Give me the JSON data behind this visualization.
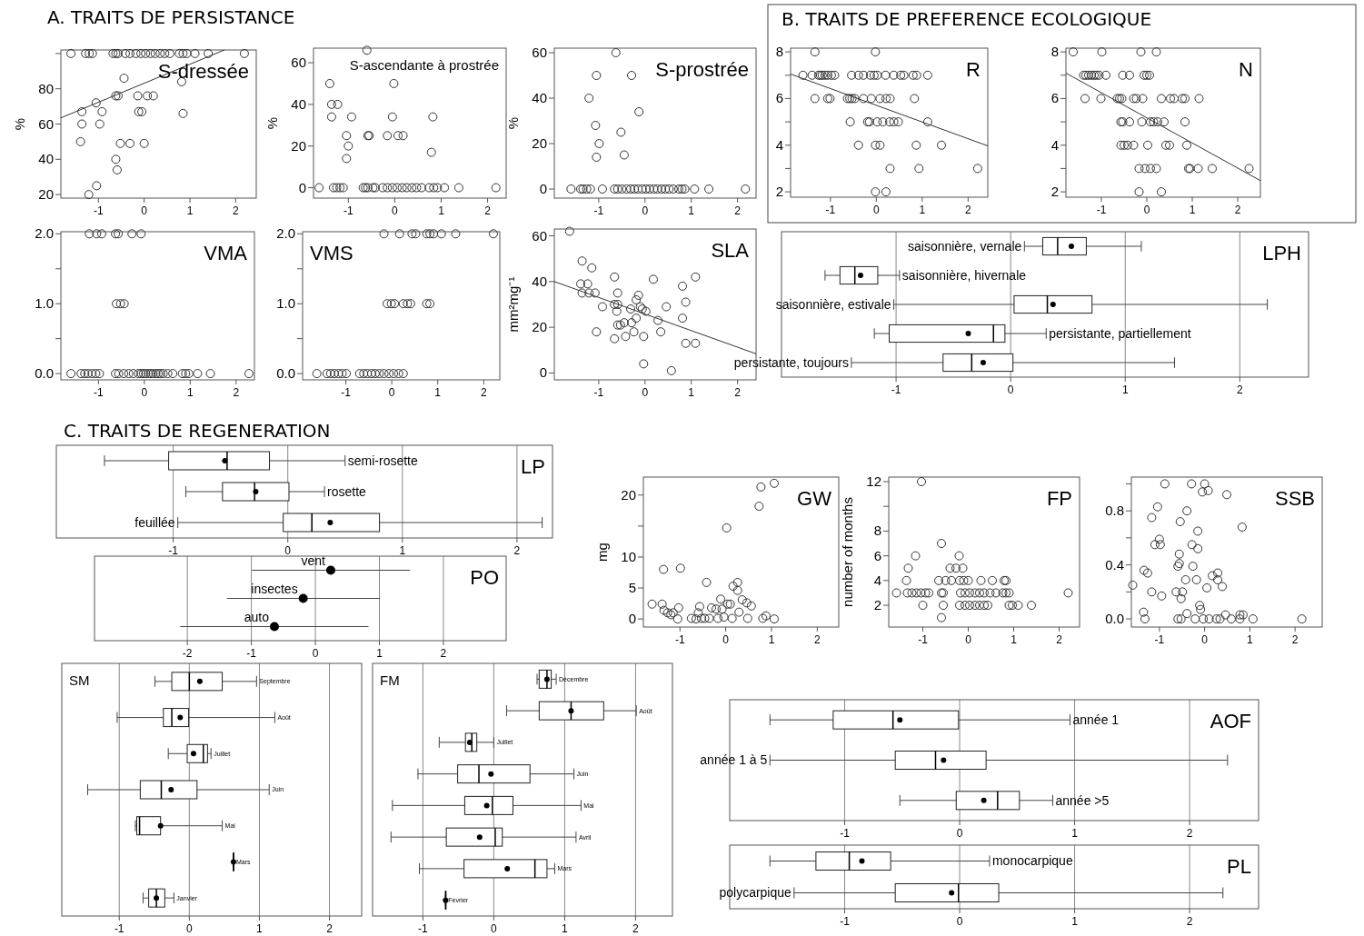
{
  "chart_data": [
    {
      "type": "scatter",
      "title": "S-dressée",
      "annotations": [
        "A. TRAITS DE PERSISTANCE"
      ],
      "ylabel": "%",
      "xlim": [
        -1.82,
        2.45
      ],
      "ylim": [
        18,
        102
      ],
      "xticks": [
        -1,
        0,
        1,
        2
      ],
      "yticks": [
        20,
        40,
        60,
        80,
        {
          "value": 100,
          "label": null
        }
      ],
      "series": [
        {
          "type": "scatter",
          "marker": "circle",
          "color": "#333333",
          "x": [
            -1.6,
            -1.28,
            -1.2,
            -1.13,
            -0.68,
            -0.62,
            -0.57,
            -0.41,
            -0.31,
            -0.18,
            -0.07,
            0.03,
            0.14,
            0.24,
            0.35,
            0.45,
            0.56,
            0.77,
            0.85,
            0.93,
            1.11,
            1.4,
            2.19,
            -1.36,
            -1.36,
            -1.39,
            -1.21,
            -1.04,
            -1.05,
            -0.97,
            -0.92,
            -0.62,
            -0.57,
            -0.44,
            -0.62,
            -0.59,
            -0.52,
            -0.31,
            -0.14,
            -0.12,
            -0.05,
            0,
            0.07,
            0.2,
            0.82,
            0.85
          ],
          "values": [
            100,
            100,
            100,
            100,
            100,
            100,
            100,
            100,
            100,
            100,
            100,
            100,
            100,
            100,
            100,
            100,
            100,
            100,
            100,
            100,
            100,
            100,
            100,
            67,
            60,
            50,
            20,
            25,
            72,
            60,
            67,
            76,
            76,
            86,
            40,
            34,
            49,
            49,
            76,
            67,
            67,
            49,
            76,
            76,
            84,
            66
          ]
        },
        {
          "type": "line",
          "color": "#333333",
          "x": [
            -1.82,
            1.75
          ],
          "values": [
            63.5,
            102
          ]
        }
      ]
    },
    {
      "type": "scatter",
      "title": "S-ascendante à prostrée",
      "ylabel": "%",
      "marker": "circle",
      "xlim": [
        -1.75,
        2.4
      ],
      "ylim": [
        -5,
        67
      ],
      "xticks": [
        -1,
        0,
        1,
        2
      ],
      "yticks": [
        0,
        20,
        40,
        60
      ],
      "series": [
        {
          "type": "scatter",
          "color": "#333333",
          "x": [
            -1.63,
            -1.32,
            -1.25,
            -1.18,
            -1.11,
            -0.68,
            -0.63,
            -0.58,
            -0.47,
            -0.42,
            -0.26,
            -0.16,
            -0.05,
            0.05,
            0.16,
            0.26,
            0.37,
            0.47,
            0.58,
            0.74,
            0.84,
            0.92,
            1.07,
            1.38,
            2.18,
            -1.4,
            -1.36,
            -1.23,
            -1.36,
            -0.93,
            -1.04,
            -1.0,
            -1.04,
            -0.58,
            -0.55,
            -0.6,
            -0.16,
            -0.05,
            -0.02,
            0.07,
            0.18,
            0.82,
            0.79
          ],
          "values": [
            0,
            0,
            0,
            0,
            0,
            0,
            0,
            0,
            0,
            0,
            0,
            0,
            0,
            0,
            0,
            0,
            0,
            0,
            0,
            0,
            0,
            0,
            0,
            0,
            0,
            50,
            40,
            40,
            34,
            34,
            25,
            20,
            14,
            25,
            25,
            66,
            25,
            34,
            50,
            25,
            25,
            34,
            17
          ]
        }
      ]
    },
    {
      "type": "scatter",
      "title": "S-prostrée",
      "ylabel": "%",
      "marker": "circle",
      "xlim": [
        -1.96,
        2.4
      ],
      "ylim": [
        -4,
        62
      ],
      "xticks": [
        -1,
        0,
        1,
        2
      ],
      "yticks": [
        0,
        20,
        40,
        60
      ],
      "series": [
        {
          "type": "scatter",
          "color": "#333333",
          "x": [
            -1.6,
            -1.39,
            -1.34,
            -1.26,
            -1.18,
            -0.92,
            -0.66,
            -0.59,
            -0.5,
            -0.4,
            -0.31,
            -0.23,
            -0.15,
            -0.06,
            0.02,
            0.1,
            0.19,
            0.27,
            0.36,
            0.44,
            0.52,
            0.61,
            0.73,
            0.8,
            0.86,
            1.07,
            1.38,
            2.17,
            -1.21,
            -1.05,
            -1.07,
            -0.99,
            -1.05,
            -0.63,
            -0.52,
            -0.45,
            -0.29,
            -0.13
          ],
          "values": [
            0,
            0,
            0,
            0,
            0,
            0,
            0,
            0,
            0,
            0,
            0,
            0,
            0,
            0,
            0,
            0,
            0,
            0,
            0,
            0,
            0,
            0,
            0,
            0,
            0,
            0,
            0,
            0,
            40,
            50,
            28,
            20,
            14,
            60,
            25,
            15,
            50,
            34
          ]
        }
      ]
    },
    {
      "type": "scatter",
      "title": "VMA",
      "marker": "circle",
      "xlim": [
        -1.82,
        2.4
      ],
      "ylim": [
        -0.09,
        2.03
      ],
      "xticks": [
        -1,
        0,
        1,
        2
      ],
      "yticks": [
        {
          "value": 0,
          "label": "0.0"
        },
        {
          "value": 0.5,
          "label": null
        },
        {
          "value": 1,
          "label": "1.0"
        },
        {
          "value": 1.5,
          "label": null
        },
        {
          "value": 2,
          "label": "2.0"
        }
      ],
      "series": [
        {
          "type": "scatter",
          "color": "#333333",
          "x": [
            -1.2,
            -1.04,
            -0.93,
            -0.63,
            -0.57,
            -0.27,
            -0.07,
            -0.61,
            -0.52,
            -0.44,
            -1.6,
            -1.38,
            -1.3,
            -1.23,
            -1.14,
            -1.06,
            -0.98,
            -0.63,
            -0.56,
            -0.45,
            -0.34,
            -0.24,
            -0.13,
            -0.07,
            -0.02,
            0.03,
            0.09,
            0.14,
            0.19,
            0.25,
            0.3,
            0.35,
            0.41,
            0.51,
            0.62,
            0.83,
            0.9,
            0.97,
            1.16,
            1.44,
            2.28
          ],
          "values": [
            2,
            2,
            2,
            2,
            2,
            2,
            2,
            1,
            1,
            1,
            0,
            0,
            0,
            0,
            0,
            0,
            0,
            0,
            0,
            0,
            0,
            0,
            0,
            0,
            0,
            0,
            0,
            0,
            0,
            0,
            0,
            0,
            0,
            0,
            0,
            0,
            0,
            0,
            0,
            0,
            0
          ]
        }
      ]
    },
    {
      "type": "scatter",
      "title": "VMS",
      "marker": "circle",
      "xlim": [
        -1.94,
        2.35
      ],
      "ylim": [
        -0.09,
        2.03
      ],
      "xticks": [
        -1,
        0,
        1,
        2
      ],
      "yticks": [
        {
          "value": 0,
          "label": "0.0"
        },
        {
          "value": 0.5,
          "label": null
        },
        {
          "value": 1,
          "label": "1.0"
        },
        {
          "value": 1.5,
          "label": null
        },
        {
          "value": 2,
          "label": "2.0"
        }
      ],
      "series": [
        {
          "type": "scatter",
          "color": "#333333",
          "x": [
            -0.17,
            0.17,
            0.44,
            0.52,
            0.76,
            0.83,
            0.91,
            1.08,
            1.39,
            2.21,
            -0.1,
            -0.01,
            0.06,
            0.25,
            0.34,
            0.41,
            0.76,
            0.83,
            -1.63,
            -1.41,
            -1.33,
            -1.25,
            -1.16,
            -1.08,
            -0.99,
            -0.7,
            -0.61,
            -0.53,
            -0.44,
            -0.36,
            -0.27,
            -0.17,
            -0.06,
            0.04,
            0.15,
            0.25
          ],
          "values": [
            2,
            2,
            2,
            2,
            2,
            2,
            2,
            2,
            2,
            2,
            1,
            1,
            1,
            1,
            1,
            1,
            1,
            1,
            0,
            0,
            0,
            0,
            0,
            0,
            0,
            0,
            0,
            0,
            0,
            0,
            0,
            0,
            0,
            0,
            0,
            0
          ]
        }
      ]
    },
    {
      "type": "scatter",
      "title": "SLA",
      "ylabel": "mm²mg⁻¹",
      "xlim": [
        -1.96,
        2.4
      ],
      "ylim": [
        -3,
        63
      ],
      "xticks": [
        -1,
        0,
        1,
        2
      ],
      "yticks": [
        0,
        20,
        40,
        60
      ],
      "series": [
        {
          "type": "scatter",
          "marker": "circle",
          "color": "#333333",
          "x": [
            -1.63,
            -1.36,
            -1.15,
            -1.39,
            -1.24,
            -1.36,
            -1.21,
            -1.08,
            -0.92,
            -1.05,
            -0.66,
            -0.59,
            -0.66,
            -0.59,
            -0.61,
            -0.59,
            -0.53,
            -0.45,
            -0.66,
            -0.42,
            -0.29,
            -0.31,
            -0.24,
            -0.19,
            -0.19,
            -0.14,
            -0.1,
            -0.06,
            -0.03,
            -0.03,
            0.02,
            0.18,
            0.46,
            0.28,
            0.34,
            0.57,
            0.81,
            0.88,
            0.81,
            0.88,
            1.09,
            1.09
          ],
          "values": [
            62,
            49,
            46,
            39,
            39,
            35,
            35,
            35,
            29,
            18,
            42,
            35,
            30,
            30,
            27,
            21,
            21,
            22,
            15,
            16,
            22,
            28,
            18,
            32,
            24,
            34,
            29,
            28,
            16,
            4,
            27,
            41,
            29,
            23,
            18,
            1,
            38,
            31,
            24,
            13,
            13,
            42
          ]
        },
        {
          "type": "line",
          "color": "#333333",
          "x": [
            -1.96,
            2.4
          ],
          "values": [
            40,
            8.4
          ]
        }
      ]
    },
    {
      "type": "scatter",
      "title": "R",
      "annotations": [
        "B. TRAITS DE PREFERENCE ECOLOGIQUE"
      ],
      "xlim": [
        -1.87,
        2.43
      ],
      "ylim": [
        1.77,
        8.16
      ],
      "xticks": [
        -1,
        0,
        1,
        2
      ],
      "yticks": [
        2,
        {
          "value": 3,
          "label": null
        },
        4,
        {
          "value": 5,
          "label": null
        },
        6,
        {
          "value": 7,
          "label": null
        },
        8
      ],
      "series": [
        {
          "type": "scatter",
          "marker": "circle",
          "color": "#333333",
          "x": [
            -1.34,
            -0.02,
            -1.6,
            -1.4,
            -1.26,
            -1.22,
            -1.18,
            -1.12,
            -1.06,
            -0.98,
            -0.91,
            -0.54,
            -0.39,
            -0.28,
            -0.13,
            -0.05,
            0.02,
            0.2,
            0.38,
            0.53,
            0.6,
            0.8,
            0.88,
            1.12,
            -1.34,
            -1.06,
            -1.01,
            -0.63,
            -0.58,
            -0.53,
            -0.47,
            -0.28,
            -0.11,
            0.08,
            0.21,
            0.3,
            0.83,
            -0.57,
            -0.19,
            -0.15,
            0.02,
            0.14,
            0.29,
            0.38,
            0.48,
            1.12,
            -0.39,
            -0.02,
            0.08,
            0.87,
            1.42,
            0.3,
            0.93,
            2.21,
            -0.02,
            0.21
          ],
          "values": [
            8,
            8,
            7,
            7,
            7,
            7,
            7,
            7,
            7,
            7,
            7,
            7,
            7,
            7,
            7,
            7,
            7,
            7,
            7,
            7,
            7,
            7,
            7,
            7,
            6,
            6,
            6,
            6,
            6,
            6,
            6,
            6,
            6,
            6,
            6,
            6,
            6,
            5,
            5,
            5,
            5,
            5,
            5,
            5,
            5,
            5,
            4,
            4,
            4,
            4,
            4,
            3,
            3,
            3,
            2,
            2
          ]
        },
        {
          "type": "line",
          "color": "#333333",
          "x": [
            -1.87,
            2.43
          ],
          "values": [
            7.05,
            3.97
          ]
        }
      ]
    },
    {
      "type": "scatter",
      "title": "N",
      "xlim": [
        -1.78,
        2.5
      ],
      "ylim": [
        1.77,
        8.16
      ],
      "xticks": [
        -1,
        0,
        1,
        2
      ],
      "yticks": [
        2,
        {
          "value": 3,
          "label": null
        },
        4,
        {
          "value": 5,
          "label": null
        },
        6,
        {
          "value": 7,
          "label": null
        },
        8
      ],
      "series": [
        {
          "type": "scatter",
          "marker": "circle",
          "color": "#333333",
          "x": [
            -1.62,
            -0.99,
            -0.13,
            0.21,
            -1.39,
            -1.34,
            -1.28,
            -1.22,
            -1.16,
            -1.11,
            -1.05,
            -0.9,
            -0.53,
            -0.38,
            -0.06,
            0,
            0.06,
            -1.36,
            -1.01,
            -0.65,
            -0.6,
            -0.55,
            -0.29,
            -0.23,
            -0.09,
            0.32,
            0.52,
            0.6,
            0.78,
            0.84,
            1.15,
            -0.57,
            -0.53,
            -0.38,
            -0.11,
            0.08,
            0.15,
            0.24,
            0.38,
            0.84,
            -0.57,
            -0.5,
            -0.42,
            -0.29,
            0.02,
            0.42,
            0.5,
            0.88,
            -0.17,
            -0.04,
            0.08,
            0.21,
            0.92,
            0.95,
            1.13,
            1.44,
            2.25,
            -0.17,
            0.32
          ],
          "values": [
            8,
            8,
            8,
            8,
            7,
            7,
            7,
            7,
            7,
            7,
            7,
            7,
            7,
            7,
            7,
            7,
            7,
            6,
            6,
            6,
            6,
            6,
            6,
            6,
            6,
            6,
            6,
            6,
            6,
            6,
            6,
            5,
            5,
            5,
            5,
            5,
            5,
            5,
            5,
            5,
            4,
            4,
            4,
            4,
            4,
            4,
            4,
            4,
            3,
            3,
            3,
            3,
            3,
            3,
            3,
            3,
            3,
            2,
            2
          ]
        },
        {
          "type": "line",
          "color": "#333333",
          "x": [
            -1.78,
            2.5
          ],
          "values": [
            7.09,
            2.48
          ]
        }
      ]
    },
    {
      "type": "box",
      "title": "LPH",
      "orientation": "horizontal",
      "grid": "x",
      "xlim": [
        -2.0,
        2.6
      ],
      "xticks": [
        -1,
        0,
        1,
        2
      ],
      "categories": [
        "saisonnière, vernale",
        "saisonnière, hivernale",
        "saisonnière, estivale",
        "persistante, partiellement",
        "persistante, toujours"
      ],
      "boxes": [
        {
          "low": 0.12,
          "q1": 0.28,
          "median": 0.41,
          "q3": 0.66,
          "high": 1.14,
          "mean": 0.53
        },
        {
          "low": -1.62,
          "q1": -1.49,
          "median": -1.36,
          "q3": -1.16,
          "high": -0.97,
          "mean": -1.31
        },
        {
          "low": -1.02,
          "q1": 0.03,
          "median": 0.32,
          "q3": 0.71,
          "high": 2.24,
          "mean": 0.37
        },
        {
          "low": -1.19,
          "q1": -1.06,
          "median": -0.15,
          "q3": -0.05,
          "high": 0.31,
          "mean": -0.37
        },
        {
          "low": -1.39,
          "q1": -0.59,
          "median": -0.34,
          "q3": 0.02,
          "high": 1.43,
          "mean": -0.24
        }
      ]
    },
    {
      "type": "box",
      "title": "LP",
      "annotations": [
        "C. TRAITS DE REGENERATION"
      ],
      "orientation": "horizontal",
      "grid": "x",
      "xlim": [
        -2.02,
        2.31
      ],
      "xticks": [
        -1,
        0,
        1,
        2
      ],
      "categories": [
        "semi-rosette",
        "rosette",
        "feuillée"
      ],
      "boxes": [
        {
          "low": -1.6,
          "q1": -1.04,
          "median": -0.53,
          "q3": -0.16,
          "high": 0.5,
          "mean": -0.55
        },
        {
          "low": -0.89,
          "q1": -0.57,
          "median": -0.29,
          "q3": 0.01,
          "high": 0.32,
          "mean": -0.28
        },
        {
          "low": -0.96,
          "q1": -0.04,
          "median": 0.21,
          "q3": 0.8,
          "high": 2.22,
          "mean": 0.37
        }
      ]
    },
    {
      "type": "scatter",
      "title": "PO",
      "orientation": "horizontal",
      "grid": "x",
      "xlim": [
        -3.45,
        2.98
      ],
      "xticks": [
        -2,
        -1,
        0,
        1,
        2
      ],
      "categories": [
        "vent",
        "insectes",
        "auto"
      ],
      "values": [
        0.24,
        -0.19,
        -0.64
      ],
      "errors": [
        [
          -0.99,
          1.48
        ],
        [
          -1.38,
          1.01
        ],
        [
          -2.11,
          0.83
        ]
      ]
    },
    {
      "type": "scatter",
      "title": "GW",
      "ylabel": "mg",
      "marker": "circle",
      "xlim": [
        -1.8,
        2.47
      ],
      "ylim": [
        -1.3,
        22.9
      ],
      "xticks": [
        -1,
        0,
        1,
        2
      ],
      "yticks": [
        0,
        5,
        10,
        {
          "value": 15,
          "label": null
        },
        20
      ],
      "series": [
        {
          "type": "scatter",
          "color": "#333333",
          "x": [
            -1.61,
            -1.39,
            -1.35,
            -1.27,
            -1.2,
            -1.15,
            -1.36,
            -0.99,
            -1.03,
            -1.05,
            -0.42,
            -0.65,
            -0.6,
            -0.57,
            -0.53,
            -0.46,
            -0.31,
            -0.21,
            -0.17,
            -0.11,
            -0.08,
            -0.04,
            0.04,
            0.1,
            0.02,
            0.14,
            0.16,
            0.26,
            0.26,
            0.36,
            0.46,
            0.56,
            0.29,
            0.48,
            0.73,
            0.77,
            1.06,
            0.81,
            0.88,
            1.06,
            -0.36,
            -0.75
          ],
          "values": [
            2.4,
            2.4,
            1.4,
            1.0,
            0.7,
            1.0,
            8.0,
            8.2,
            1.8,
            0,
            5.9,
            0,
            1.0,
            2.0,
            0.1,
            0.1,
            1.8,
            1.6,
            0.1,
            3.2,
            1.6,
            0.3,
            2.4,
            2.4,
            14.7,
            0.1,
            5.3,
            5.9,
            4.6,
            3.1,
            2.6,
            2.1,
            1.1,
            0.1,
            18.2,
            21.3,
            21.9,
            0.1,
            0.5,
            0,
            0.1,
            0.1
          ]
        }
      ]
    },
    {
      "type": "scatter",
      "title": "FP",
      "ylabel": "number of months",
      "marker": "circle",
      "xlim": [
        -1.75,
        2.45
      ],
      "ylim": [
        0.24,
        12.37
      ],
      "xticks": [
        -1,
        0,
        1,
        2
      ],
      "yticks": [
        2,
        4,
        6,
        8,
        {
          "value": 10,
          "label": null
        },
        12
      ],
      "series": [
        {
          "type": "scatter",
          "color": "#333333",
          "x": [
            -1.58,
            -1.34,
            -1.24,
            -1.14,
            -1.04,
            -0.94,
            -0.87,
            -0.59,
            -0.55,
            -0.17,
            -0.07,
            0.03,
            0.15,
            0.25,
            0.35,
            0.48,
            0.61,
            0.76,
            0.83,
            0.9,
            2.2,
            -1.0,
            -0.55,
            -0.19,
            -0.07,
            0.03,
            0.15,
            0.25,
            0.35,
            0.43,
            0.9,
            0.97,
            1.1,
            1.39,
            -1.36,
            -0.65,
            -0.5,
            -0.37,
            -0.19,
            -0.1,
            0,
            0.28,
            0.53,
            0.79,
            0.83,
            -1.32,
            -0.4,
            -0.27,
            -0.12,
            -1.16,
            -0.2,
            -0.59,
            -0.59,
            -1.03
          ],
          "values": [
            3,
            3,
            3,
            3,
            3,
            3,
            3,
            3,
            3,
            3,
            3,
            3,
            3,
            3,
            3,
            3,
            3,
            3,
            3,
            3,
            3,
            2,
            2,
            2,
            2,
            2,
            2,
            2,
            2,
            2,
            2,
            2,
            2,
            2,
            4,
            4,
            4,
            4,
            4,
            4,
            4,
            4,
            4,
            4,
            4,
            5,
            5,
            5,
            5,
            6,
            6,
            7,
            1,
            12
          ]
        }
      ]
    },
    {
      "type": "scatter",
      "title": "SSB",
      "marker": "circle",
      "xlim": [
        -1.62,
        2.6
      ],
      "ylim": [
        -0.06,
        1.05
      ],
      "xticks": [
        -1,
        0,
        1,
        2
      ],
      "yticks": [
        {
          "value": 0,
          "label": "0.0"
        },
        {
          "value": 0.2,
          "label": null
        },
        {
          "value": 0.4,
          "label": "0.4"
        },
        {
          "value": 0.6,
          "label": null
        },
        {
          "value": 0.8,
          "label": "0.8"
        },
        {
          "value": 1,
          "label": null
        }
      ],
      "series": [
        {
          "type": "scatter",
          "color": "#333333",
          "x": [
            -1.59,
            -1.35,
            -1.32,
            -1.34,
            -1.26,
            -1.17,
            -1.17,
            -1.04,
            -1.1,
            -1.0,
            -0.98,
            -0.95,
            -0.88,
            -0.63,
            -0.59,
            -0.56,
            -0.56,
            -0.54,
            -0.52,
            -0.49,
            -0.59,
            -0.52,
            -0.42,
            -0.39,
            -0.39,
            -0.29,
            -0.28,
            -0.26,
            -0.18,
            -0.15,
            -0.15,
            -0.21,
            -0.11,
            -0.09,
            -0.05,
            0,
            -0.03,
            0.08,
            0.05,
            0.1,
            0.17,
            0.26,
            0.29,
            0.29,
            0.39,
            0.34,
            0.49,
            0.46,
            0.59,
            0.78,
            0.83,
            0.78,
            0.85,
            1.07,
            2.15
          ],
          "values": [
            0.25,
            0.05,
            0,
            0.36,
            0.34,
            0.2,
            0.75,
            0.83,
            0.55,
            0.59,
            0.55,
            0.17,
            1.0,
            0.2,
            0.39,
            0.41,
            0.48,
            0.72,
            0.15,
            0.2,
            0,
            0,
            0.29,
            0.8,
            0.04,
            1.0,
            0.55,
            0.39,
            0.29,
            0.65,
            0.52,
            0,
            0.1,
            0.07,
            0.94,
            1.0,
            0,
            0.95,
            0.23,
            0,
            0.32,
            0,
            0.34,
            0.29,
            0.24,
            0,
            0.92,
            0.03,
            0,
            0.03,
            0.68,
            0,
            0.03,
            0,
            0
          ]
        }
      ]
    },
    {
      "type": "box",
      "title": "SM",
      "orientation": "horizontal",
      "grid": "x",
      "xlim": [
        -1.82,
        2.46
      ],
      "xticks": [
        -1,
        0,
        1,
        2
      ],
      "categories": [
        "Septembre",
        "Août",
        "Juillet",
        "Juin",
        "Mai",
        "Mars",
        "Janvier"
      ],
      "boxes": [
        {
          "low": -0.49,
          "q1": -0.25,
          "median": 0,
          "q3": 0.47,
          "high": 0.96,
          "mean": 0.15
        },
        {
          "low": -1.03,
          "q1": -0.37,
          "median": -0.25,
          "q3": -0.01,
          "high": 1.22,
          "mean": -0.13
        },
        {
          "low": -0.3,
          "q1": -0.03,
          "median": 0.2,
          "q3": 0.26,
          "high": 0.31,
          "mean": 0.06
        },
        {
          "low": -1.45,
          "q1": -0.7,
          "median": -0.4,
          "q3": 0.11,
          "high": 1.14,
          "mean": -0.26
        },
        {
          "low": -0.77,
          "q1": -0.75,
          "median": -0.71,
          "q3": -0.41,
          "high": 0.47,
          "mean": -0.41
        },
        {
          "low": 0.63,
          "q1": 0.63,
          "median": 0.63,
          "q3": 0.63,
          "high": 0.63,
          "mean": 0.63
        },
        {
          "low": -0.66,
          "q1": -0.58,
          "median": -0.47,
          "q3": -0.35,
          "high": -0.22,
          "mean": -0.47
        }
      ]
    },
    {
      "type": "box",
      "title": "FM",
      "orientation": "horizontal",
      "grid": "x",
      "xlim": [
        -1.71,
        2.52
      ],
      "xticks": [
        -1,
        0,
        1,
        2
      ],
      "categories": [
        "Décembre",
        "Août",
        "Juillet",
        "Juin",
        "Mai",
        "Avril",
        "Mars",
        "Fevrier"
      ],
      "boxes": [
        {
          "low": 0.61,
          "q1": 0.64,
          "median": 0.75,
          "q3": 0.81,
          "high": 0.88,
          "mean": 0.75
        },
        {
          "low": 0.18,
          "q1": 0.64,
          "median": 1.09,
          "q3": 1.55,
          "high": 2.01,
          "mean": 1.09
        },
        {
          "low": -0.77,
          "q1": -0.4,
          "median": -0.31,
          "q3": -0.24,
          "high": 0,
          "mean": -0.34
        },
        {
          "low": -1.07,
          "q1": -0.51,
          "median": -0.21,
          "q3": 0.51,
          "high": 1.13,
          "mean": -0.04
        },
        {
          "low": -1.43,
          "q1": -0.41,
          "median": -0.02,
          "q3": 0.27,
          "high": 1.23,
          "mean": -0.1
        },
        {
          "low": -1.45,
          "q1": -0.67,
          "median": 0.02,
          "q3": 0.12,
          "high": 1.16,
          "mean": -0.2
        },
        {
          "low": -1.05,
          "q1": -0.42,
          "median": 0.58,
          "q3": 0.75,
          "high": 0.86,
          "mean": 0.19
        },
        {
          "low": -0.68,
          "q1": -0.68,
          "median": -0.68,
          "q3": -0.68,
          "high": -0.68,
          "mean": -0.68
        }
      ]
    },
    {
      "type": "box",
      "title": "AOF",
      "orientation": "horizontal",
      "grid": "x",
      "xlim": [
        -2.0,
        2.6
      ],
      "xticks": [
        -1,
        0,
        1,
        2
      ],
      "categories": [
        "année 1",
        "année 1 à 5",
        "année >5"
      ],
      "boxes": [
        {
          "low": -1.65,
          "q1": -1.1,
          "median": -0.58,
          "q3": -0.01,
          "high": 0.96,
          "mean": -0.52
        },
        {
          "low": -1.65,
          "q1": -0.56,
          "median": -0.21,
          "q3": 0.23,
          "high": 2.33,
          "mean": -0.14
        },
        {
          "low": -0.52,
          "q1": -0.03,
          "median": 0.33,
          "q3": 0.52,
          "high": 0.81,
          "mean": 0.21
        }
      ]
    },
    {
      "type": "box",
      "title": "PL",
      "orientation": "horizontal",
      "grid": "x",
      "xlim": [
        -2.0,
        2.6
      ],
      "xticks": [
        -1,
        0,
        1,
        2
      ],
      "categories": [
        "monocarpique",
        "polycarpique"
      ],
      "boxes": [
        {
          "low": -1.65,
          "q1": -1.25,
          "median": -0.96,
          "q3": -0.6,
          "high": 0.26,
          "mean": -0.85
        },
        {
          "low": -1.44,
          "q1": -0.56,
          "median": -0.01,
          "q3": 0.34,
          "high": 2.29,
          "mean": -0.07
        }
      ]
    }
  ]
}
